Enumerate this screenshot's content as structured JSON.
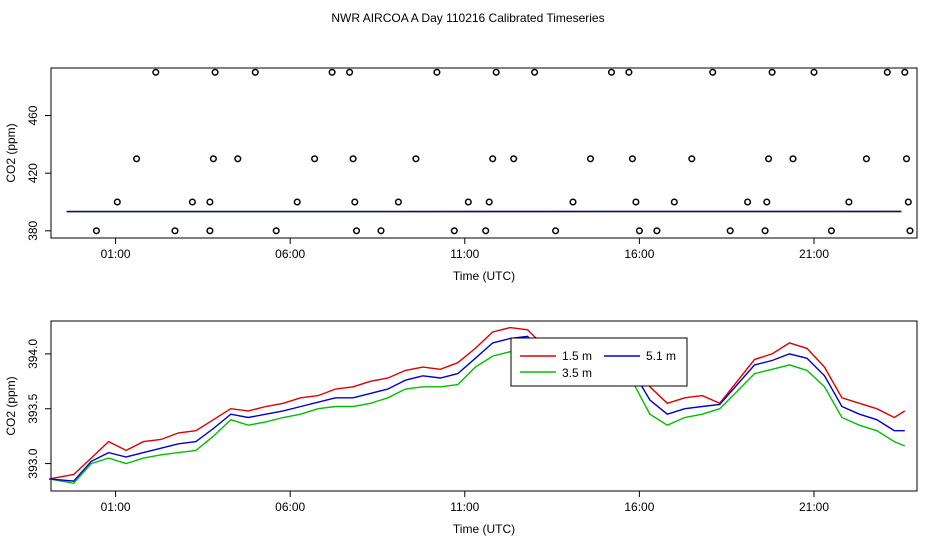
{
  "title": "NWR AIRCOA A  Day 110216  Calibrated Timeseries",
  "colors": {
    "s1_5": "#e00000",
    "s3_5": "#00c000",
    "s5_1": "#0000d0"
  },
  "chart_data": [
    {
      "type": "scatter",
      "title": "",
      "xlabel": "Time (UTC)",
      "ylabel": "CO2 (ppm)",
      "xlim_hours": [
        -0.85,
        23.95
      ],
      "ylim": [
        375,
        493
      ],
      "x_ticks": [
        {
          "h": 1,
          "label": "01:00"
        },
        {
          "h": 6,
          "label": "06:00"
        },
        {
          "h": 11,
          "label": "11:00"
        },
        {
          "h": 16,
          "label": "16:00"
        },
        {
          "h": 21,
          "label": "21:00"
        }
      ],
      "y_ticks": [
        380,
        420,
        460
      ],
      "grid": false,
      "points": [
        [
          0.45,
          380
        ],
        [
          1.05,
          400
        ],
        [
          1.6,
          430
        ],
        [
          2.15,
          490
        ],
        [
          2.7,
          380
        ],
        [
          3.2,
          400
        ],
        [
          3.7,
          380
        ],
        [
          3.7,
          400
        ],
        [
          3.8,
          430
        ],
        [
          3.85,
          490
        ],
        [
          4.5,
          430
        ],
        [
          5.0,
          490
        ],
        [
          5.6,
          380
        ],
        [
          6.2,
          400
        ],
        [
          6.7,
          430
        ],
        [
          7.2,
          490
        ],
        [
          7.7,
          490
        ],
        [
          7.8,
          430
        ],
        [
          7.85,
          400
        ],
        [
          7.9,
          380
        ],
        [
          8.6,
          380
        ],
        [
          9.1,
          400
        ],
        [
          9.6,
          430
        ],
        [
          10.2,
          490
        ],
        [
          10.7,
          380
        ],
        [
          11.1,
          400
        ],
        [
          11.6,
          380
        ],
        [
          11.7,
          400
        ],
        [
          11.8,
          430
        ],
        [
          11.9,
          490
        ],
        [
          12.4,
          430
        ],
        [
          13.0,
          490
        ],
        [
          13.6,
          380
        ],
        [
          14.1,
          400
        ],
        [
          14.6,
          430
        ],
        [
          15.2,
          490
        ],
        [
          15.7,
          490
        ],
        [
          15.8,
          430
        ],
        [
          15.9,
          400
        ],
        [
          16.0,
          380
        ],
        [
          16.5,
          380
        ],
        [
          17.0,
          400
        ],
        [
          17.5,
          430
        ],
        [
          18.1,
          490
        ],
        [
          18.6,
          380
        ],
        [
          19.1,
          400
        ],
        [
          19.6,
          380
        ],
        [
          19.65,
          400
        ],
        [
          19.7,
          430
        ],
        [
          19.8,
          490
        ],
        [
          20.4,
          430
        ],
        [
          21.0,
          490
        ],
        [
          21.5,
          380
        ],
        [
          22.0,
          400
        ],
        [
          22.5,
          430
        ],
        [
          23.1,
          490
        ],
        [
          23.6,
          490
        ],
        [
          23.65,
          430
        ],
        [
          23.7,
          400
        ],
        [
          23.75,
          380
        ]
      ],
      "series": [
        {
          "color": "#e00000",
          "x": [
            -0.4,
            23.5
          ],
          "y": [
            393.3,
            393.4
          ]
        },
        {
          "color": "#00c000",
          "x": [
            -0.4,
            23.5
          ],
          "y": [
            393.3,
            393.3
          ]
        },
        {
          "color": "#0000d0",
          "x": [
            -0.4,
            23.5
          ],
          "y": [
            393.35,
            393.45
          ]
        }
      ]
    },
    {
      "type": "line",
      "title": "",
      "xlabel": "Time (UTC)",
      "ylabel": "CO2 (ppm)",
      "xlim_hours": [
        -0.85,
        23.95
      ],
      "ylim": [
        392.75,
        394.3
      ],
      "x_ticks": [
        {
          "h": 1,
          "label": "01:00"
        },
        {
          "h": 6,
          "label": "06:00"
        },
        {
          "h": 11,
          "label": "11:00"
        },
        {
          "h": 16,
          "label": "16:00"
        },
        {
          "h": 21,
          "label": "21:00"
        }
      ],
      "y_ticks": [
        {
          "v": 393.0,
          "label": "393.0"
        },
        {
          "v": 393.5,
          "label": "393.5"
        },
        {
          "v": 394.0,
          "label": "394.0"
        }
      ],
      "grid": false,
      "legend": {
        "placement": "top-center",
        "entries": [
          {
            "label": "1.5 m",
            "color": "#e00000"
          },
          {
            "label": "5.1 m",
            "color": "#0000d0"
          },
          {
            "label": "3.5 m",
            "color": "#00c000"
          }
        ]
      },
      "series": [
        {
          "name": "1.5 m",
          "color": "#e00000",
          "x": [
            -0.9,
            -0.2,
            0.3,
            0.8,
            1.3,
            1.8,
            2.3,
            2.8,
            3.3,
            3.8,
            4.3,
            4.8,
            5.3,
            5.8,
            6.3,
            6.8,
            7.3,
            7.8,
            8.3,
            8.8,
            9.3,
            9.8,
            10.3,
            10.8,
            11.3,
            11.8,
            12.3,
            12.8,
            13.3,
            13.8,
            14.3,
            14.8,
            15.3,
            15.8,
            16.3,
            16.8,
            17.3,
            17.8,
            18.3,
            18.8,
            19.3,
            19.8,
            20.3,
            20.8,
            21.3,
            21.8,
            22.3,
            22.8,
            23.3,
            23.6
          ],
          "y": [
            392.86,
            392.9,
            393.05,
            393.2,
            393.12,
            393.2,
            393.22,
            393.28,
            393.3,
            393.4,
            393.5,
            393.48,
            393.52,
            393.55,
            393.6,
            393.62,
            393.68,
            393.7,
            393.75,
            393.78,
            393.85,
            393.88,
            393.86,
            393.92,
            394.05,
            394.2,
            394.24,
            394.22,
            394.06,
            394.0,
            394.02,
            394.05,
            394.1,
            394.0,
            393.7,
            393.55,
            393.6,
            393.62,
            393.55,
            393.75,
            393.95,
            394.0,
            394.1,
            394.05,
            393.88,
            393.6,
            393.55,
            393.5,
            393.42,
            393.48
          ]
        },
        {
          "name": "3.5 m",
          "color": "#00c000",
          "x": [
            -0.9,
            -0.2,
            0.3,
            0.8,
            1.3,
            1.8,
            2.3,
            2.8,
            3.3,
            3.8,
            4.3,
            4.8,
            5.3,
            5.8,
            6.3,
            6.8,
            7.3,
            7.8,
            8.3,
            8.8,
            9.3,
            9.8,
            10.3,
            10.8,
            11.3,
            11.8,
            12.3,
            12.8,
            13.3,
            13.8,
            14.3,
            14.8,
            15.3,
            15.8,
            16.3,
            16.8,
            17.3,
            17.8,
            18.3,
            18.8,
            19.3,
            19.8,
            20.3,
            20.8,
            21.3,
            21.8,
            22.3,
            22.8,
            23.3,
            23.6
          ],
          "y": [
            392.86,
            392.82,
            393.0,
            393.05,
            393.0,
            393.05,
            393.08,
            393.1,
            393.12,
            393.25,
            393.4,
            393.35,
            393.38,
            393.42,
            393.45,
            393.5,
            393.52,
            393.52,
            393.55,
            393.6,
            393.68,
            393.7,
            393.7,
            393.72,
            393.88,
            393.98,
            394.02,
            394.06,
            393.9,
            393.84,
            393.86,
            393.9,
            393.95,
            393.75,
            393.45,
            393.35,
            393.42,
            393.45,
            393.5,
            393.66,
            393.82,
            393.86,
            393.9,
            393.85,
            393.7,
            393.42,
            393.35,
            393.3,
            393.2,
            393.16
          ]
        },
        {
          "name": "5.1 m",
          "color": "#0000d0",
          "x": [
            -0.9,
            -0.2,
            0.3,
            0.8,
            1.3,
            1.8,
            2.3,
            2.8,
            3.3,
            3.8,
            4.3,
            4.8,
            5.3,
            5.8,
            6.3,
            6.8,
            7.3,
            7.8,
            8.3,
            8.8,
            9.3,
            9.8,
            10.3,
            10.8,
            11.3,
            11.8,
            12.3,
            12.8,
            13.3,
            13.8,
            14.3,
            14.8,
            15.3,
            15.8,
            16.3,
            16.8,
            17.3,
            17.8,
            18.3,
            18.8,
            19.3,
            19.8,
            20.3,
            20.8,
            21.3,
            21.8,
            22.3,
            22.8,
            23.3,
            23.6
          ],
          "y": [
            392.86,
            392.84,
            393.02,
            393.1,
            393.06,
            393.1,
            393.14,
            393.18,
            393.2,
            393.32,
            393.45,
            393.42,
            393.45,
            393.48,
            393.52,
            393.56,
            393.6,
            393.6,
            393.64,
            393.68,
            393.76,
            393.8,
            393.78,
            393.82,
            393.96,
            394.1,
            394.14,
            394.16,
            393.98,
            393.92,
            393.95,
            393.98,
            394.04,
            393.85,
            393.58,
            393.45,
            393.5,
            393.52,
            393.54,
            393.72,
            393.9,
            393.94,
            394.0,
            393.96,
            393.8,
            393.52,
            393.45,
            393.4,
            393.3,
            393.3
          ]
        }
      ]
    }
  ]
}
